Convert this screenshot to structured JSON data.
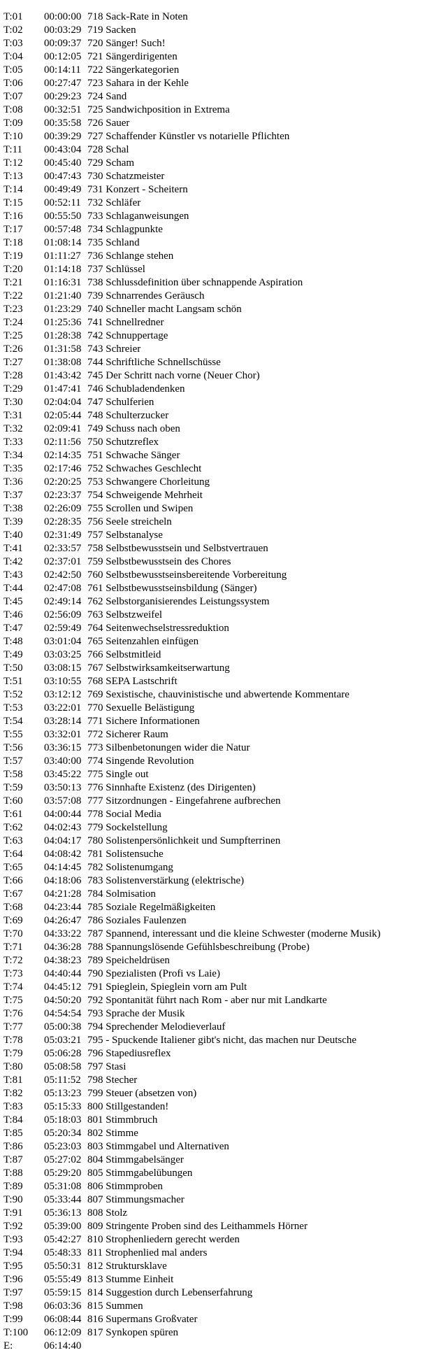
{
  "rows": [
    {
      "label": "T:01",
      "time": "00:00:00",
      "num": "718",
      "title": "Sack-Rate in Noten"
    },
    {
      "label": "T:02",
      "time": "00:03:29",
      "num": "719",
      "title": "Sacken"
    },
    {
      "label": "T:03",
      "time": "00:09:37",
      "num": "720",
      "title": "Sänger! Such!"
    },
    {
      "label": "T:04",
      "time": "00:12:05",
      "num": "721",
      "title": "Sängerdirigenten"
    },
    {
      "label": "T:05",
      "time": "00:14:11",
      "num": "722",
      "title": "Sängerkategorien"
    },
    {
      "label": "T:06",
      "time": "00:27:47",
      "num": "723",
      "title": "Sahara in der Kehle"
    },
    {
      "label": "T:07",
      "time": "00:29:23",
      "num": "724",
      "title": "Sand"
    },
    {
      "label": "T:08",
      "time": "00:32:51",
      "num": "725",
      "title": "Sandwichposition in Extrema"
    },
    {
      "label": "T:09",
      "time": "00:35:58",
      "num": "726",
      "title": "Sauer"
    },
    {
      "label": "T:10",
      "time": "00:39:29",
      "num": "727",
      "title": "Schaffender Künstler vs notarielle Pflichten"
    },
    {
      "label": "T:11",
      "time": "00:43:04",
      "num": "728",
      "title": "Schal"
    },
    {
      "label": "T:12",
      "time": "00:45:40",
      "num": "729",
      "title": "Scham"
    },
    {
      "label": "T:13",
      "time": "00:47:43",
      "num": "730",
      "title": "Schatzmeister"
    },
    {
      "label": "T:14",
      "time": "00:49:49",
      "num": "731",
      "title": "Konzert - Scheitern"
    },
    {
      "label": "T:15",
      "time": "00:52:11",
      "num": "732",
      "title": "Schläfer"
    },
    {
      "label": "T:16",
      "time": "00:55:50",
      "num": "733",
      "title": "Schlaganweisungen"
    },
    {
      "label": "T:17",
      "time": "00:57:48",
      "num": "734",
      "title": "Schlagpunkte"
    },
    {
      "label": "T:18",
      "time": "01:08:14",
      "num": "735",
      "title": "Schland"
    },
    {
      "label": "T:19",
      "time": "01:11:27",
      "num": "736",
      "title": "Schlange stehen"
    },
    {
      "label": "T:20",
      "time": "01:14:18",
      "num": "737",
      "title": "Schlüssel"
    },
    {
      "label": "T:21",
      "time": "01:16:31",
      "num": "738",
      "title": "Schlussdefinition über schnappende Aspiration"
    },
    {
      "label": "T:22",
      "time": "01:21:40",
      "num": "739",
      "title": "Schnarrendes Geräusch"
    },
    {
      "label": "T:23",
      "time": "01:23:29",
      "num": "740",
      "title": "Schneller macht Langsam schön"
    },
    {
      "label": "T:24",
      "time": "01:25:36",
      "num": "741",
      "title": "Schnellredner"
    },
    {
      "label": "T:25",
      "time": "01:28:38",
      "num": "742",
      "title": "Schnuppertage"
    },
    {
      "label": "T:26",
      "time": "01:31:58",
      "num": "743",
      "title": "Schreier"
    },
    {
      "label": "T:27",
      "time": "01:38:08",
      "num": "744",
      "title": "Schriftliche Schnellschüsse"
    },
    {
      "label": "T:28",
      "time": "01:43:42",
      "num": "745",
      "title": "Der Schritt nach vorne (Neuer Chor)"
    },
    {
      "label": "T:29",
      "time": "01:47:41",
      "num": "746",
      "title": "Schubladendenken"
    },
    {
      "label": "T:30",
      "time": "02:04:04",
      "num": "747",
      "title": "Schulferien"
    },
    {
      "label": "T:31",
      "time": "02:05:44",
      "num": "748",
      "title": "Schulterzucker"
    },
    {
      "label": "T:32",
      "time": "02:09:41",
      "num": "749",
      "title": "Schuss nach oben"
    },
    {
      "label": "T:33",
      "time": "02:11:56",
      "num": "750",
      "title": "Schutzreflex"
    },
    {
      "label": "T:34",
      "time": "02:14:35",
      "num": "751",
      "title": "Schwache Sänger"
    },
    {
      "label": "T:35",
      "time": "02:17:46",
      "num": "752",
      "title": "Schwaches Geschlecht"
    },
    {
      "label": "T:36",
      "time": "02:20:25",
      "num": "753",
      "title": "Schwangere Chorleitung"
    },
    {
      "label": "T:37",
      "time": "02:23:37",
      "num": "754",
      "title": "Schweigende Mehrheit"
    },
    {
      "label": "T:38",
      "time": "02:26:09",
      "num": "755",
      "title": "Scrollen und Swipen"
    },
    {
      "label": "T:39",
      "time": "02:28:35",
      "num": "756",
      "title": "Seele streicheln"
    },
    {
      "label": "T:40",
      "time": "02:31:49",
      "num": "757",
      "title": "Selbstanalyse"
    },
    {
      "label": "T:41",
      "time": "02:33:57",
      "num": "758",
      "title": "Selbstbewusstsein und Selbstvertrauen"
    },
    {
      "label": "T:42",
      "time": "02:37:01",
      "num": "759",
      "title": "Selbstbewusstsein des Chores"
    },
    {
      "label": "T:43",
      "time": "02:42:50",
      "num": "760",
      "title": "Selbstbewusstseinsbereitende Vorbereitung"
    },
    {
      "label": "T:44",
      "time": "02:47:08",
      "num": "761",
      "title": "Selbstbewusstseinsbildung (Sänger)"
    },
    {
      "label": "T:45",
      "time": "02:49:14",
      "num": "762",
      "title": "Selbstorganisierendes Leistungssystem"
    },
    {
      "label": "T:46",
      "time": "02:56:09",
      "num": "763",
      "title": "Selbstzweifel"
    },
    {
      "label": "T:47",
      "time": "02:59:49",
      "num": "764",
      "title": "Seitenwechselstressreduktion"
    },
    {
      "label": "T:48",
      "time": "03:01:04",
      "num": "765",
      "title": "Seitenzahlen einfügen"
    },
    {
      "label": "T:49",
      "time": "03:03:25",
      "num": "766",
      "title": "Selbstmitleid"
    },
    {
      "label": "T:50",
      "time": "03:08:15",
      "num": "767",
      "title": "Selbstwirksamkeitserwartung"
    },
    {
      "label": "T:51",
      "time": "03:10:55",
      "num": "768",
      "title": "SEPA Lastschrift"
    },
    {
      "label": "T:52",
      "time": "03:12:12",
      "num": "769",
      "title": "Sexistische, chauvinistische und abwertende Kommentare"
    },
    {
      "label": "T:53",
      "time": "03:22:01",
      "num": "770",
      "title": "Sexuelle Belästigung"
    },
    {
      "label": "T:54",
      "time": "03:28:14",
      "num": "771",
      "title": "Sichere Informationen"
    },
    {
      "label": "T:55",
      "time": "03:32:01",
      "num": "772",
      "title": "Sicherer Raum"
    },
    {
      "label": "T:56",
      "time": "03:36:15",
      "num": "773",
      "title": "Silbenbetonungen wider die Natur"
    },
    {
      "label": "T:57",
      "time": "03:40:00",
      "num": "774",
      "title": "Singende Revolution"
    },
    {
      "label": "T:58",
      "time": "03:45:22",
      "num": "775",
      "title": "Single out"
    },
    {
      "label": "T:59",
      "time": "03:50:13",
      "num": "776",
      "title": "Sinnhafte Existenz (des Dirigenten)"
    },
    {
      "label": "T:60",
      "time": "03:57:08",
      "num": "777",
      "title": "Sitzordnungen - Eingefahrene aufbrechen"
    },
    {
      "label": "T:61",
      "time": "04:00:44",
      "num": "778",
      "title": "Social Media"
    },
    {
      "label": "T:62",
      "time": "04:02:43",
      "num": "779",
      "title": "Sockelstellung"
    },
    {
      "label": "T:63",
      "time": "04:04:17",
      "num": "780",
      "title": "Solistenpersönlichkeit und Sumpfterrinen"
    },
    {
      "label": "T:64",
      "time": "04:08:42",
      "num": "781",
      "title": "Solistensuche"
    },
    {
      "label": "T:65",
      "time": "04:14:45",
      "num": "782",
      "title": "Solistenumgang"
    },
    {
      "label": "T:66",
      "time": "04:18:06",
      "num": "783",
      "title": "Solistenverstärkung (elektrische)"
    },
    {
      "label": "T:67",
      "time": "04:21:28",
      "num": "784",
      "title": "Solmisation"
    },
    {
      "label": "T:68",
      "time": "04:23:44",
      "num": "785",
      "title": "Soziale Regelmäßigkeiten"
    },
    {
      "label": "T:69",
      "time": "04:26:47",
      "num": "786",
      "title": "Soziales Faulenzen"
    },
    {
      "label": "T:70",
      "time": "04:33:22",
      "num": "787",
      "title": "Spannend, interessant und die kleine Schwester (moderne Musik)"
    },
    {
      "label": "T:71",
      "time": "04:36:28",
      "num": "788",
      "title": "Spannungslösende Gefühlsbeschreibung (Probe)"
    },
    {
      "label": "T:72",
      "time": "04:38:23",
      "num": "789",
      "title": "Speicheldrüsen"
    },
    {
      "label": "T:73",
      "time": "04:40:44",
      "num": "790",
      "title": "Spezialisten (Profi vs Laie)"
    },
    {
      "label": "T:74",
      "time": "04:45:12",
      "num": "791",
      "title": "Spieglein, Spieglein vorn am Pult"
    },
    {
      "label": "T:75",
      "time": "04:50:20",
      "num": "792",
      "title": "Spontanität führt nach Rom - aber nur mit Landkarte"
    },
    {
      "label": "T:76",
      "time": "04:54:54",
      "num": "793",
      "title": "Sprache der Musik"
    },
    {
      "label": "T:77",
      "time": "05:00:38",
      "num": "794",
      "title": "Sprechender Melodieverlauf"
    },
    {
      "label": "T:78",
      "time": "05:03:21",
      "num": "795",
      "title": "- Spuckende Italiener gibt's nicht, das machen nur Deutsche"
    },
    {
      "label": "T:79",
      "time": "05:06:28",
      "num": "796",
      "title": "Stapediusreflex"
    },
    {
      "label": "T:80",
      "time": "05:08:58",
      "num": "797",
      "title": "Stasi"
    },
    {
      "label": "T:81",
      "time": "05:11:52",
      "num": "798",
      "title": "Stecher"
    },
    {
      "label": "T:82",
      "time": "05:13:23",
      "num": "799",
      "title": "Steuer (absetzen von)"
    },
    {
      "label": "T:83",
      "time": "05:15:33",
      "num": "800",
      "title": "Stillgestanden!"
    },
    {
      "label": "T:84",
      "time": "05:18:03",
      "num": "801",
      "title": "Stimmbruch"
    },
    {
      "label": "T:85",
      "time": "05:20:34",
      "num": "802",
      "title": "Stimme"
    },
    {
      "label": "T:86",
      "time": "05:23:03",
      "num": "803",
      "title": "Stimmgabel und Alternativen"
    },
    {
      "label": "T:87",
      "time": "05:27:02",
      "num": "804",
      "title": "Stimmgabelsänger"
    },
    {
      "label": "T:88",
      "time": "05:29:20",
      "num": "805",
      "title": "Stimmgabelübungen"
    },
    {
      "label": "T:89",
      "time": "05:31:08",
      "num": "806",
      "title": "Stimmproben"
    },
    {
      "label": "T:90",
      "time": "05:33:44",
      "num": "807",
      "title": "Stimmungsmacher"
    },
    {
      "label": "T:91",
      "time": "05:36:13",
      "num": "808",
      "title": "Stolz"
    },
    {
      "label": "T:92",
      "time": "05:39:00",
      "num": "809",
      "title": "Stringente Proben sind des Leithammels Hörner"
    },
    {
      "label": "T:93",
      "time": "05:42:27",
      "num": "810",
      "title": "Strophenliedern gerecht werden"
    },
    {
      "label": "T:94",
      "time": "05:48:33",
      "num": "811",
      "title": "Strophenlied mal anders"
    },
    {
      "label": "T:95",
      "time": "05:50:31",
      "num": "812",
      "title": "Struktursklave"
    },
    {
      "label": "T:96",
      "time": "05:55:49",
      "num": "813",
      "title": "Stumme Einheit"
    },
    {
      "label": "T:97",
      "time": "05:59:15",
      "num": "814",
      "title": "Suggestion durch Lebenserfahrung"
    },
    {
      "label": "T:98",
      "time": "06:03:36",
      "num": "815",
      "title": "Summen"
    },
    {
      "label": "T:99",
      "time": "06:08:44",
      "num": "816",
      "title": "Supermans Großvater"
    },
    {
      "label": "T:100",
      "time": "06:12:09",
      "num": "817",
      "title": "Synkopen spüren"
    },
    {
      "label": "E:",
      "time": "06:14:40",
      "num": "",
      "title": ""
    }
  ],
  "colors": {
    "background": "#ffffff",
    "text": "#000000"
  }
}
